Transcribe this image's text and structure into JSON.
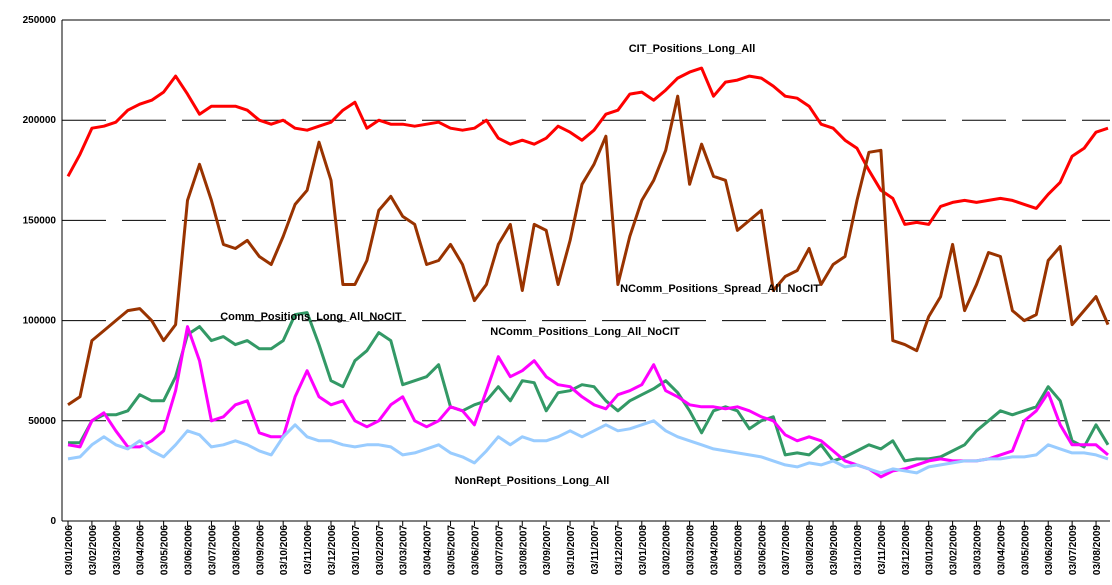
{
  "chart_data": {
    "type": "line",
    "categories": [
      "03/01/2006",
      null,
      "03/02/2006",
      null,
      "03/03/2006",
      null,
      "03/04/2006",
      null,
      "03/05/2006",
      null,
      "03/06/2006",
      null,
      "03/07/2006",
      null,
      "03/08/2006",
      null,
      "03/09/2006",
      null,
      "03/10/2006",
      null,
      "03/11/2006",
      null,
      "03/12/2006",
      null,
      "03/01/2007",
      null,
      "03/02/2007",
      null,
      "03/03/2007",
      null,
      "03/04/2007",
      null,
      "03/05/2007",
      null,
      "03/06/2007",
      null,
      "03/07/2007",
      null,
      "03/08/2007",
      null,
      "03/09/2007",
      null,
      "03/10/2007",
      null,
      "03/11/2007",
      null,
      "03/12/2007",
      null,
      "03/01/2008",
      null,
      "03/02/2008",
      null,
      "03/03/2008",
      null,
      "03/04/2008",
      null,
      "03/05/2008",
      null,
      "03/06/2008",
      null,
      "03/07/2008",
      null,
      "03/08/2008",
      null,
      "03/09/2008",
      null,
      "03/10/2008",
      null,
      "03/11/2008",
      null,
      "03/12/2008",
      null,
      "03/01/2009",
      null,
      "03/02/2009",
      null,
      "03/03/2009",
      null,
      "03/04/2009",
      null,
      "03/05/2009",
      null,
      "03/06/2009",
      null,
      "03/07/2009",
      null,
      "03/08/2009",
      null
    ],
    "series": [
      {
        "name": "CIT_Positions_Long_All",
        "color": "#ff0000",
        "values": [
          172000,
          183000,
          196000,
          197000,
          199000,
          205000,
          208000,
          210000,
          214000,
          222000,
          213000,
          203000,
          207000,
          207000,
          207000,
          205000,
          200000,
          198000,
          200000,
          196000,
          195000,
          197000,
          199000,
          205000,
          209000,
          196000,
          200000,
          198000,
          198000,
          197000,
          198000,
          199000,
          196000,
          195000,
          196000,
          200000,
          191000,
          188000,
          190000,
          188000,
          191000,
          197000,
          194000,
          190000,
          195000,
          203000,
          205000,
          213000,
          214000,
          210000,
          215000,
          221000,
          224000,
          226000,
          212000,
          219000,
          220000,
          222000,
          221000,
          217000,
          212000,
          211000,
          207000,
          198000,
          196000,
          190000,
          186000,
          175000,
          165000,
          161000,
          148000,
          149000,
          148000,
          157000,
          159000,
          160000,
          159000,
          160000,
          161000,
          160000,
          158000,
          156000,
          163000,
          169000,
          182000,
          186000,
          194000,
          196000
        ]
      },
      {
        "name": "NComm_Positions_Spread_All_NoCIT",
        "color": "#993300",
        "values": [
          58000,
          62000,
          90000,
          95000,
          100000,
          105000,
          106000,
          100000,
          90000,
          98000,
          160000,
          178000,
          160000,
          138000,
          136000,
          140000,
          132000,
          128000,
          142000,
          158000,
          165000,
          189000,
          170000,
          118000,
          118000,
          130000,
          155000,
          162000,
          152000,
          148000,
          128000,
          130000,
          138000,
          128000,
          110000,
          118000,
          138000,
          148000,
          115000,
          148000,
          145000,
          118000,
          140000,
          168000,
          178000,
          192000,
          118000,
          142000,
          160000,
          170000,
          185000,
          212000,
          168000,
          188000,
          172000,
          170000,
          145000,
          150000,
          155000,
          115000,
          122000,
          125000,
          136000,
          118000,
          128000,
          132000,
          160000,
          184000,
          185000,
          90000,
          88000,
          85000,
          102000,
          112000,
          138000,
          105000,
          118000,
          134000,
          132000,
          105000,
          100000,
          103000,
          130000,
          137000,
          98000,
          105000,
          112000,
          98000
        ]
      },
      {
        "name": "Comm_Positions_Long_All_NoCIT",
        "color": "#339966",
        "values": [
          39000,
          39000,
          50000,
          53000,
          53000,
          55000,
          63000,
          60000,
          60000,
          72000,
          93000,
          97000,
          90000,
          92000,
          88000,
          90000,
          86000,
          86000,
          90000,
          103000,
          104000,
          88000,
          70000,
          67000,
          80000,
          85000,
          94000,
          90000,
          68000,
          70000,
          72000,
          78000,
          57000,
          55000,
          58000,
          60000,
          67000,
          60000,
          70000,
          69000,
          55000,
          64000,
          65000,
          68000,
          67000,
          60000,
          55000,
          60000,
          63000,
          66000,
          70000,
          64000,
          55000,
          44000,
          55000,
          57000,
          55000,
          46000,
          50000,
          52000,
          33000,
          34000,
          33000,
          38000,
          30000,
          32000,
          35000,
          38000,
          36000,
          40000,
          30000,
          31000,
          31000,
          32000,
          35000,
          38000,
          45000,
          50000,
          55000,
          53000,
          55000,
          57000,
          67000,
          60000,
          40000,
          37000,
          48000,
          38000
        ]
      },
      {
        "name": "NComm_Positions_Long_All_NoCIT",
        "color": "#ff00ff",
        "values": [
          38000,
          37000,
          50000,
          54000,
          45000,
          37000,
          37000,
          40000,
          45000,
          65000,
          97000,
          80000,
          50000,
          52000,
          58000,
          60000,
          44000,
          42000,
          42000,
          62000,
          75000,
          62000,
          58000,
          60000,
          50000,
          47000,
          50000,
          58000,
          62000,
          50000,
          47000,
          50000,
          57000,
          55000,
          48000,
          65000,
          82000,
          72000,
          75000,
          80000,
          72000,
          68000,
          67000,
          62000,
          58000,
          56000,
          63000,
          65000,
          68000,
          78000,
          65000,
          62000,
          58000,
          57000,
          57000,
          56000,
          57000,
          55000,
          52000,
          50000,
          43000,
          40000,
          42000,
          40000,
          35000,
          30000,
          28000,
          26000,
          22000,
          25000,
          26000,
          28000,
          30000,
          31000,
          30000,
          30000,
          30000,
          31000,
          33000,
          35000,
          50000,
          55000,
          64000,
          48000,
          38000,
          38000,
          38000,
          33000
        ]
      },
      {
        "name": "NonRept_Positions_Long_All",
        "color": "#99ccff",
        "values": [
          31000,
          32000,
          38000,
          42000,
          38000,
          36000,
          40000,
          35000,
          32000,
          38000,
          45000,
          43000,
          37000,
          38000,
          40000,
          38000,
          35000,
          33000,
          42000,
          48000,
          42000,
          40000,
          40000,
          38000,
          37000,
          38000,
          38000,
          37000,
          33000,
          34000,
          36000,
          38000,
          34000,
          32000,
          29000,
          35000,
          42000,
          38000,
          42000,
          40000,
          40000,
          42000,
          45000,
          42000,
          45000,
          48000,
          45000,
          46000,
          48000,
          50000,
          45000,
          42000,
          40000,
          38000,
          36000,
          35000,
          34000,
          33000,
          32000,
          30000,
          28000,
          27000,
          29000,
          28000,
          30000,
          27000,
          28000,
          26000,
          24000,
          26000,
          25000,
          24000,
          27000,
          28000,
          29000,
          30000,
          30000,
          31000,
          31000,
          32000,
          32000,
          33000,
          38000,
          36000,
          34000,
          34000,
          33000,
          31000
        ]
      }
    ],
    "ylim": [
      0,
      250000
    ],
    "yticks": [
      0,
      50000,
      100000,
      150000,
      200000,
      250000
    ],
    "grid": true
  }
}
